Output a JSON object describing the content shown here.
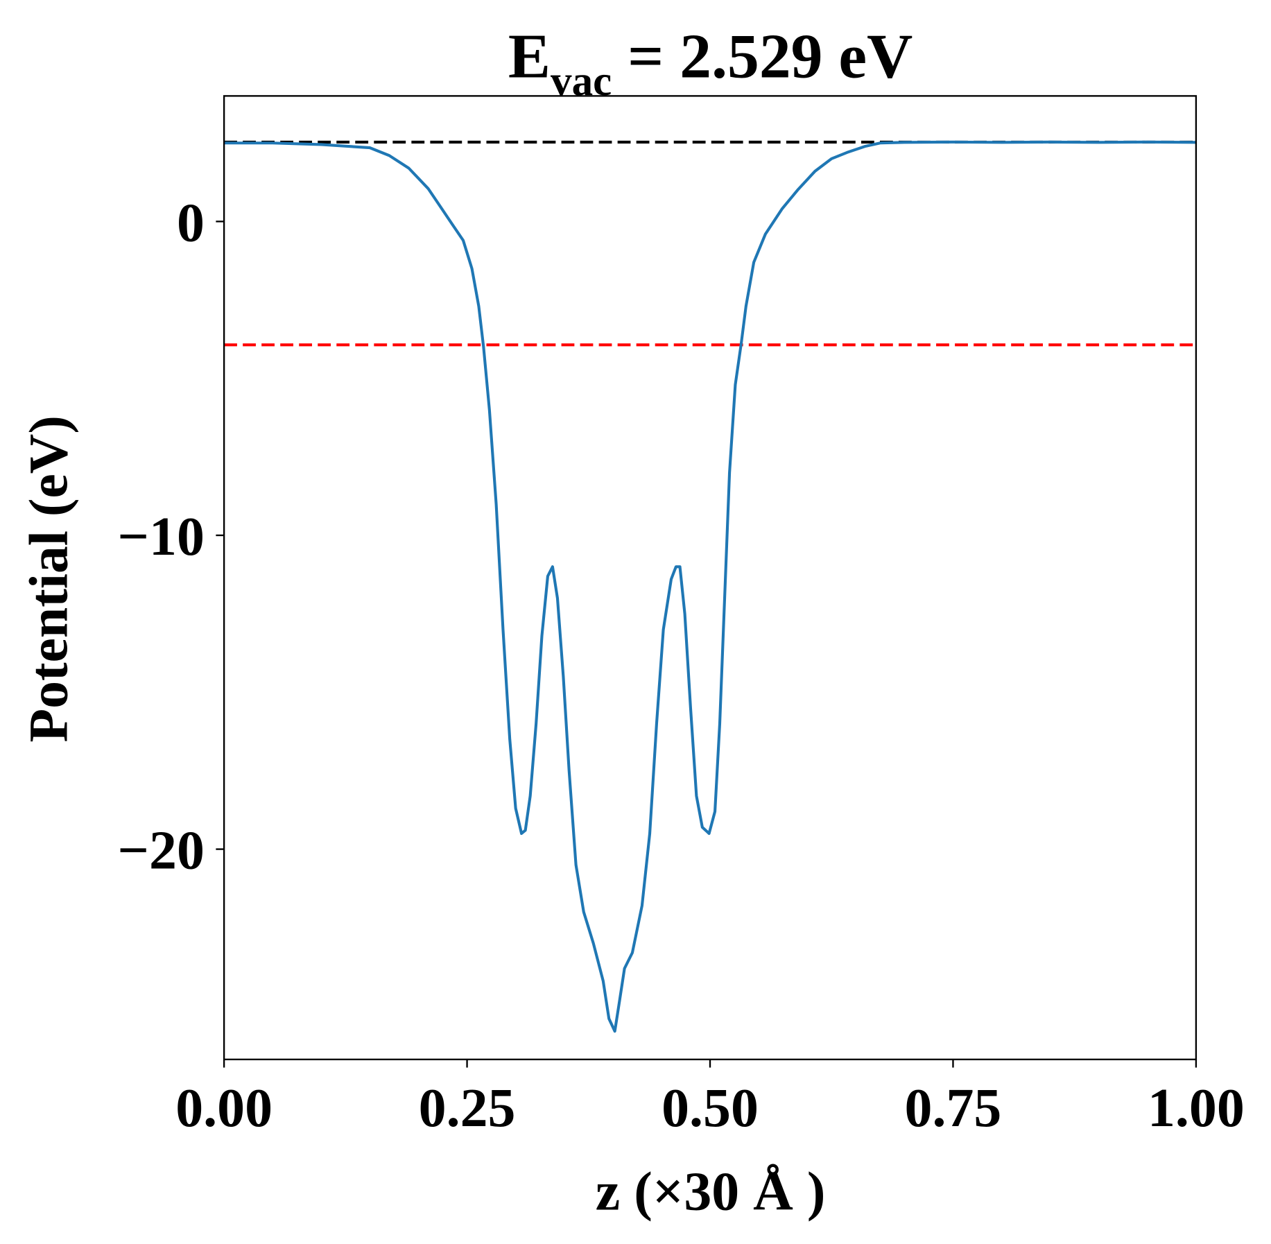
{
  "chart_data": {
    "type": "line",
    "title": {
      "main": "E",
      "subscript": "vac",
      "rest": " = 2.529 eV"
    },
    "xlabel": "z (×30 Å )",
    "ylabel": "Potential (eV)",
    "xlim": [
      0,
      1
    ],
    "ylim": [
      -26.7,
      4.0
    ],
    "xticks": [
      0,
      0.25,
      0.5,
      0.75,
      1.0
    ],
    "xtick_labels": [
      "0.00",
      "0.25",
      "0.50",
      "0.75",
      "1.00"
    ],
    "yticks": [
      0,
      -10,
      -20
    ],
    "ytick_labels": [
      "0",
      "−10",
      "−20"
    ],
    "grid": false,
    "hlines": [
      {
        "name": "vacuum-level",
        "y": 2.529,
        "color": "#000000",
        "style": "dashed"
      },
      {
        "name": "fermi-level",
        "y": -3.93,
        "color": "#ff0000",
        "style": "dashed"
      }
    ],
    "series": [
      {
        "name": "potential",
        "color": "#1f77b4",
        "x": [
          0,
          0.05,
          0.1,
          0.15,
          0.17,
          0.19,
          0.21,
          0.222,
          0.235,
          0.246,
          0.255,
          0.262,
          0.267,
          0.273,
          0.28,
          0.287,
          0.294,
          0.3,
          0.306,
          0.31,
          0.315,
          0.321,
          0.327,
          0.333,
          0.338,
          0.343,
          0.349,
          0.355,
          0.362,
          0.37,
          0.38,
          0.39,
          0.396,
          0.402,
          0.407,
          0.412,
          0.42,
          0.43,
          0.438,
          0.445,
          0.452,
          0.46,
          0.465,
          0.469,
          0.474,
          0.48,
          0.486,
          0.492,
          0.499,
          0.505,
          0.51,
          0.515,
          0.52,
          0.526,
          0.532,
          0.537,
          0.545,
          0.557,
          0.574,
          0.59,
          0.608,
          0.625,
          0.641,
          0.66,
          0.675,
          0.7,
          0.75,
          0.8,
          0.85,
          0.9,
          0.95,
          1.0
        ],
        "y": [
          2.5,
          2.5,
          2.45,
          2.35,
          2.1,
          1.7,
          1.05,
          0.5,
          -0.1,
          -0.6,
          -1.5,
          -2.7,
          -4.0,
          -6.0,
          -9.0,
          -13.0,
          -16.5,
          -18.7,
          -19.5,
          -19.4,
          -18.3,
          -16.0,
          -13.2,
          -11.3,
          -11.0,
          -12.0,
          -14.5,
          -17.5,
          -20.5,
          -22.0,
          -23.0,
          -24.2,
          -25.4,
          -25.8,
          -24.8,
          -23.8,
          -23.3,
          -21.8,
          -19.5,
          -16.0,
          -13.0,
          -11.4,
          -11.0,
          -11.0,
          -12.5,
          -15.5,
          -18.3,
          -19.3,
          -19.5,
          -18.8,
          -16.0,
          -12.0,
          -8.0,
          -5.2,
          -3.9,
          -2.7,
          -1.3,
          -0.4,
          0.4,
          1.0,
          1.6,
          2.0,
          2.2,
          2.4,
          2.5,
          2.52,
          2.53,
          2.52,
          2.53,
          2.52,
          2.53,
          2.52
        ]
      }
    ]
  }
}
